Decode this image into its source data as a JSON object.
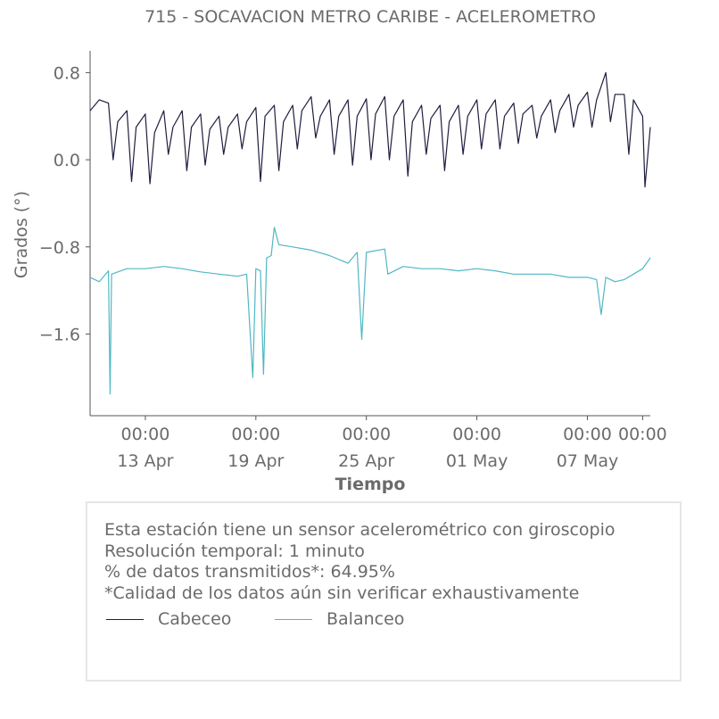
{
  "chart_data": {
    "type": "line",
    "title": "715 - SOCAVACION METRO CARIBE - ACELEROMETRO",
    "xlabel": "Tiempo",
    "ylabel": "Grados (°)",
    "x_axis": "date",
    "xlim": [
      "2025-04-10",
      "2025-05-10T10:00"
    ],
    "ylim": [
      -2.35,
      1.0
    ],
    "yticks": [
      0.8,
      0.0,
      -0.8,
      -1.6
    ],
    "ytick_labels": [
      "0.8",
      "0.0",
      "−0.8",
      "−1.6"
    ],
    "xticks": [
      {
        "time": "00:00",
        "date": "13 Apr"
      },
      {
        "time": "00:00",
        "date": "19 Apr"
      },
      {
        "time": "00:00",
        "date": "25 Apr"
      },
      {
        "time": "00:00",
        "date": "01 May"
      },
      {
        "time": "00:00",
        "date": "07 May"
      },
      {
        "time": "00:00",
        "date": ""
      }
    ],
    "grid": false,
    "series": [
      {
        "name": "Cabeceo",
        "color": "#1e1e3f",
        "points": [
          [
            "2025-04-10T00:00",
            0.45
          ],
          [
            "2025-04-10T12:00",
            0.55
          ],
          [
            "2025-04-11T00:00",
            0.52
          ],
          [
            "2025-04-11T06:00",
            0.0
          ],
          [
            "2025-04-11T12:00",
            0.35
          ],
          [
            "2025-04-12T00:00",
            0.45
          ],
          [
            "2025-04-12T06:00",
            -0.2
          ],
          [
            "2025-04-12T12:00",
            0.3
          ],
          [
            "2025-04-13T00:00",
            0.42
          ],
          [
            "2025-04-13T06:00",
            -0.22
          ],
          [
            "2025-04-13T12:00",
            0.25
          ],
          [
            "2025-04-14T00:00",
            0.45
          ],
          [
            "2025-04-14T06:00",
            0.05
          ],
          [
            "2025-04-14T12:00",
            0.3
          ],
          [
            "2025-04-15T00:00",
            0.45
          ],
          [
            "2025-04-15T06:00",
            -0.1
          ],
          [
            "2025-04-15T12:00",
            0.3
          ],
          [
            "2025-04-16T00:00",
            0.42
          ],
          [
            "2025-04-16T06:00",
            -0.05
          ],
          [
            "2025-04-16T12:00",
            0.28
          ],
          [
            "2025-04-17T00:00",
            0.4
          ],
          [
            "2025-04-17T06:00",
            0.05
          ],
          [
            "2025-04-17T12:00",
            0.3
          ],
          [
            "2025-04-18T00:00",
            0.42
          ],
          [
            "2025-04-18T06:00",
            0.1
          ],
          [
            "2025-04-18T12:00",
            0.35
          ],
          [
            "2025-04-19T00:00",
            0.48
          ],
          [
            "2025-04-19T06:00",
            -0.2
          ],
          [
            "2025-04-19T12:00",
            0.4
          ],
          [
            "2025-04-20T00:00",
            0.5
          ],
          [
            "2025-04-20T06:00",
            -0.1
          ],
          [
            "2025-04-20T12:00",
            0.35
          ],
          [
            "2025-04-21T00:00",
            0.5
          ],
          [
            "2025-04-21T06:00",
            0.1
          ],
          [
            "2025-04-21T12:00",
            0.45
          ],
          [
            "2025-04-22T00:00",
            0.58
          ],
          [
            "2025-04-22T06:00",
            0.2
          ],
          [
            "2025-04-22T12:00",
            0.4
          ],
          [
            "2025-04-23T00:00",
            0.55
          ],
          [
            "2025-04-23T06:00",
            0.05
          ],
          [
            "2025-04-23T12:00",
            0.4
          ],
          [
            "2025-04-24T00:00",
            0.55
          ],
          [
            "2025-04-24T06:00",
            -0.05
          ],
          [
            "2025-04-24T12:00",
            0.4
          ],
          [
            "2025-04-25T00:00",
            0.56
          ],
          [
            "2025-04-25T06:00",
            0.0
          ],
          [
            "2025-04-25T12:00",
            0.42
          ],
          [
            "2025-04-26T00:00",
            0.58
          ],
          [
            "2025-04-26T06:00",
            0.0
          ],
          [
            "2025-04-26T12:00",
            0.4
          ],
          [
            "2025-04-27T00:00",
            0.55
          ],
          [
            "2025-04-27T06:00",
            -0.15
          ],
          [
            "2025-04-27T12:00",
            0.35
          ],
          [
            "2025-04-28T00:00",
            0.5
          ],
          [
            "2025-04-28T06:00",
            0.05
          ],
          [
            "2025-04-28T12:00",
            0.38
          ],
          [
            "2025-04-29T00:00",
            0.5
          ],
          [
            "2025-04-29T06:00",
            -0.1
          ],
          [
            "2025-04-29T12:00",
            0.35
          ],
          [
            "2025-04-30T00:00",
            0.5
          ],
          [
            "2025-04-30T06:00",
            0.05
          ],
          [
            "2025-04-30T12:00",
            0.4
          ],
          [
            "2025-05-01T00:00",
            0.55
          ],
          [
            "2025-05-01T06:00",
            0.1
          ],
          [
            "2025-05-01T12:00",
            0.42
          ],
          [
            "2025-05-02T00:00",
            0.55
          ],
          [
            "2025-05-02T06:00",
            0.1
          ],
          [
            "2025-05-02T12:00",
            0.4
          ],
          [
            "2025-05-03T00:00",
            0.52
          ],
          [
            "2025-05-03T06:00",
            0.15
          ],
          [
            "2025-05-03T12:00",
            0.42
          ],
          [
            "2025-05-04T00:00",
            0.5
          ],
          [
            "2025-05-04T06:00",
            0.2
          ],
          [
            "2025-05-04T12:00",
            0.4
          ],
          [
            "2025-05-05T00:00",
            0.55
          ],
          [
            "2025-05-05T06:00",
            0.25
          ],
          [
            "2025-05-05T12:00",
            0.45
          ],
          [
            "2025-05-06T00:00",
            0.6
          ],
          [
            "2025-05-06T06:00",
            0.3
          ],
          [
            "2025-05-06T12:00",
            0.5
          ],
          [
            "2025-05-07T00:00",
            0.62
          ],
          [
            "2025-05-07T06:00",
            0.3
          ],
          [
            "2025-05-07T12:00",
            0.55
          ],
          [
            "2025-05-08T00:00",
            0.8
          ],
          [
            "2025-05-08T06:00",
            0.35
          ],
          [
            "2025-05-08T12:00",
            0.6
          ],
          [
            "2025-05-09T00:00",
            0.6
          ],
          [
            "2025-05-09T06:00",
            0.05
          ],
          [
            "2025-05-09T12:00",
            0.55
          ],
          [
            "2025-05-10T00:00",
            0.4
          ],
          [
            "2025-05-10T03:00",
            -0.25
          ],
          [
            "2025-05-10T10:00",
            0.3
          ]
        ]
      },
      {
        "name": "Balanceo",
        "color": "#4fb8c4",
        "points": [
          [
            "2025-04-10T00:00",
            -1.08
          ],
          [
            "2025-04-10T12:00",
            -1.12
          ],
          [
            "2025-04-11T00:00",
            -1.02
          ],
          [
            "2025-04-11T02:00",
            -2.15
          ],
          [
            "2025-04-11T04:00",
            -1.05
          ],
          [
            "2025-04-12T00:00",
            -1.0
          ],
          [
            "2025-04-13T00:00",
            -1.0
          ],
          [
            "2025-04-14T00:00",
            -0.98
          ],
          [
            "2025-04-15T00:00",
            -1.0
          ],
          [
            "2025-04-16T00:00",
            -1.03
          ],
          [
            "2025-04-17T00:00",
            -1.05
          ],
          [
            "2025-04-18T00:00",
            -1.07
          ],
          [
            "2025-04-18T12:00",
            -1.05
          ],
          [
            "2025-04-18T20:00",
            -2.0
          ],
          [
            "2025-04-19T00:00",
            -1.0
          ],
          [
            "2025-04-19T06:00",
            -1.02
          ],
          [
            "2025-04-19T10:00",
            -1.97
          ],
          [
            "2025-04-19T14:00",
            -0.9
          ],
          [
            "2025-04-19T20:00",
            -0.88
          ],
          [
            "2025-04-20T00:00",
            -0.62
          ],
          [
            "2025-04-20T06:00",
            -0.78
          ],
          [
            "2025-04-21T00:00",
            -0.8
          ],
          [
            "2025-04-22T00:00",
            -0.83
          ],
          [
            "2025-04-23T00:00",
            -0.88
          ],
          [
            "2025-04-24T00:00",
            -0.95
          ],
          [
            "2025-04-24T12:00",
            -0.85
          ],
          [
            "2025-04-24T18:00",
            -1.65
          ],
          [
            "2025-04-25T00:00",
            -0.85
          ],
          [
            "2025-04-26T00:00",
            -0.82
          ],
          [
            "2025-04-26T04:00",
            -1.05
          ],
          [
            "2025-04-27T00:00",
            -0.98
          ],
          [
            "2025-04-28T00:00",
            -1.0
          ],
          [
            "2025-04-29T00:00",
            -1.0
          ],
          [
            "2025-04-30T00:00",
            -1.02
          ],
          [
            "2025-05-01T00:00",
            -1.0
          ],
          [
            "2025-05-02T00:00",
            -1.02
          ],
          [
            "2025-05-03T00:00",
            -1.05
          ],
          [
            "2025-05-04T00:00",
            -1.05
          ],
          [
            "2025-05-05T00:00",
            -1.05
          ],
          [
            "2025-05-06T00:00",
            -1.08
          ],
          [
            "2025-05-07T00:00",
            -1.08
          ],
          [
            "2025-05-07T12:00",
            -1.1
          ],
          [
            "2025-05-07T18:00",
            -1.42
          ],
          [
            "2025-05-08T00:00",
            -1.08
          ],
          [
            "2025-05-08T12:00",
            -1.12
          ],
          [
            "2025-05-09T00:00",
            -1.1
          ],
          [
            "2025-05-09T12:00",
            -1.05
          ],
          [
            "2025-05-10T00:00",
            -1.0
          ],
          [
            "2025-05-10T10:00",
            -0.9
          ]
        ]
      }
    ]
  },
  "info": {
    "line1": "Esta estación tiene un sensor acelerométrico con giroscopio",
    "line2": "Resolución temporal: 1 minuto",
    "line3": "% de datos transmitidos*: 64.95%",
    "line4": "*Calidad de los datos aún sin verificar exhaustivamente"
  },
  "legend": {
    "cabeceo": "Cabeceo",
    "balanceo": "Balanceo"
  }
}
